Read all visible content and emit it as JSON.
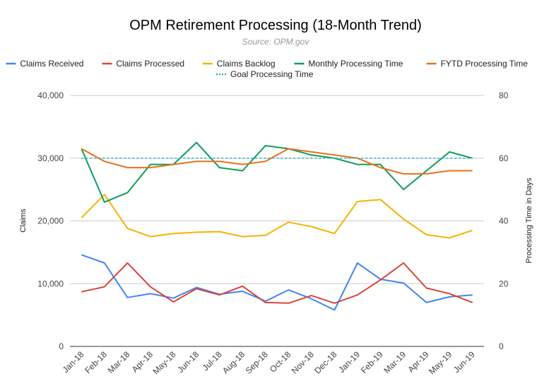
{
  "chart_data": {
    "type": "line",
    "title": "OPM Retirement Processing (18-Month Trend)",
    "subtitle": "Source: OPM.gov",
    "categories": [
      "Jan-18",
      "Feb-18",
      "Mar-18",
      "Apr-18",
      "May-18",
      "Jun-18",
      "Jul-18",
      "Aug-18",
      "Sep-18",
      "Oct-18",
      "Nov-18",
      "Dec-18",
      "Jan-19",
      "Feb-19",
      "Mar-19",
      "Apr-19",
      "May-19",
      "Jun-19"
    ],
    "ylabel": "Claims",
    "y2label": "Processing Time in Days",
    "ylim": [
      0,
      40000
    ],
    "y2lim": [
      0,
      80
    ],
    "y_ticks": [
      "0",
      "10,000",
      "20,000",
      "30,000",
      "40,000"
    ],
    "y2_ticks": [
      "0",
      "20",
      "40",
      "60",
      "80"
    ],
    "grid": true,
    "legend_position": "top",
    "series": [
      {
        "name": "Claims Received",
        "axis": "left",
        "color": "#4285f4",
        "style": "solid",
        "values": [
          14600,
          13300,
          7800,
          8400,
          7700,
          9400,
          8300,
          8800,
          7200,
          9000,
          7600,
          5800,
          13300,
          10700,
          10100,
          7000,
          7900,
          8200
        ]
      },
      {
        "name": "Claims Processed",
        "axis": "left",
        "color": "#db4437",
        "style": "solid",
        "values": [
          8700,
          9500,
          13300,
          9500,
          7100,
          9200,
          8200,
          9600,
          7000,
          6900,
          8100,
          6900,
          8200,
          10600,
          13300,
          9300,
          8400,
          7000
        ]
      },
      {
        "name": "Claims Backlog",
        "axis": "left",
        "color": "#f4b400",
        "style": "solid",
        "values": [
          20500,
          24200,
          18800,
          17500,
          18000,
          18200,
          18300,
          17500,
          17700,
          19800,
          19100,
          18000,
          23100,
          23400,
          20300,
          17800,
          17300,
          18500
        ]
      },
      {
        "name": "Monthly Processing Time",
        "axis": "right",
        "color": "#0f9d58",
        "style": "solid",
        "values": [
          63,
          46,
          49,
          58,
          58,
          65,
          57,
          56,
          64,
          63,
          61,
          60,
          58,
          58,
          50,
          56,
          62,
          60
        ]
      },
      {
        "name": "FYTD Processing Time",
        "axis": "right",
        "color": "#e8711a",
        "style": "solid",
        "values": [
          63,
          59,
          57,
          57,
          58,
          59,
          59,
          58,
          59,
          63,
          62,
          61,
          60,
          57,
          55,
          55,
          56,
          56
        ]
      },
      {
        "name": "Goal Processing Time",
        "axis": "right",
        "color": "#26b6c4",
        "style": "dotted",
        "values": [
          60,
          60,
          60,
          60,
          60,
          60,
          60,
          60,
          60,
          60,
          60,
          60,
          60,
          60,
          60,
          60,
          60,
          60
        ]
      }
    ]
  }
}
